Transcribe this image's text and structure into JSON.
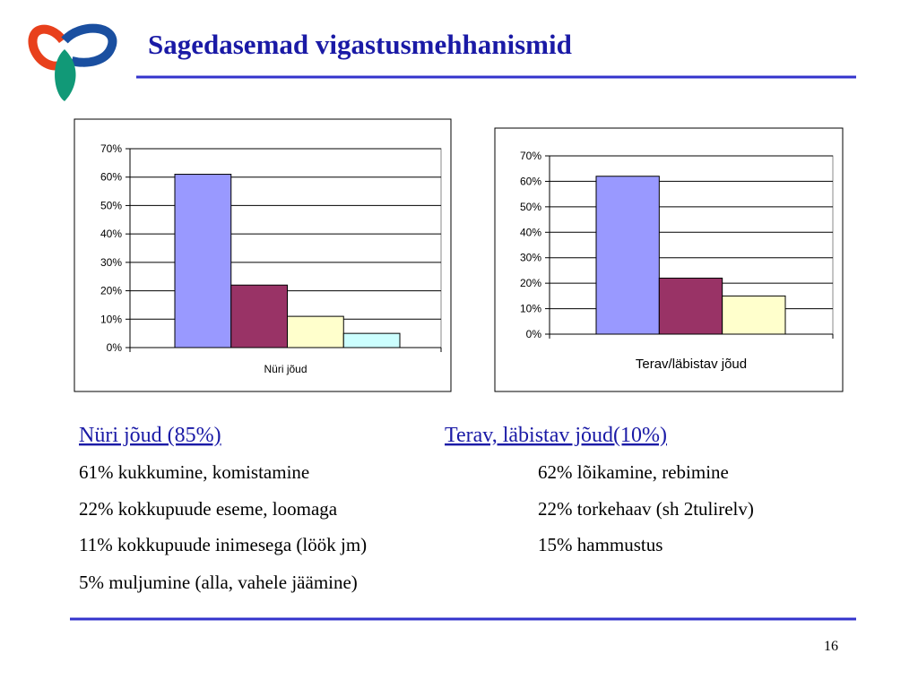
{
  "title": "Sagedasemad vigastusmehhanismid",
  "chart_data": [
    {
      "type": "bar",
      "categories": [
        "Nüri jõud"
      ],
      "series": [
        {
          "color": "#9999ff",
          "values": [
            61
          ]
        },
        {
          "color": "#993366",
          "values": [
            22
          ]
        },
        {
          "color": "#ffffcc",
          "values": [
            11
          ]
        },
        {
          "color": "#ccffff",
          "values": [
            5
          ]
        }
      ],
      "ylim": [
        0,
        70
      ],
      "yticks": [
        {
          "value": 0,
          "label": "0%"
        },
        {
          "value": 10,
          "label": "10%"
        },
        {
          "value": 20,
          "label": "20%"
        },
        {
          "value": 30,
          "label": "30%"
        },
        {
          "value": 40,
          "label": "40%"
        },
        {
          "value": 50,
          "label": "50%"
        },
        {
          "value": 60,
          "label": "60%"
        },
        {
          "value": 70,
          "label": "70%"
        }
      ],
      "grid": true
    },
    {
      "type": "bar",
      "categories": [
        "Terav/läbistav jõud"
      ],
      "series": [
        {
          "color": "#9999ff",
          "values": [
            62
          ]
        },
        {
          "color": "#993366",
          "values": [
            22
          ]
        },
        {
          "color": "#ffffcc",
          "values": [
            15
          ]
        }
      ],
      "ylim": [
        0,
        70
      ],
      "yticks": [
        {
          "value": 0,
          "label": "0%"
        },
        {
          "value": 10,
          "label": "10%"
        },
        {
          "value": 20,
          "label": "20%"
        },
        {
          "value": 30,
          "label": "30%"
        },
        {
          "value": 40,
          "label": "40%"
        },
        {
          "value": 50,
          "label": "50%"
        },
        {
          "value": 60,
          "label": "60%"
        },
        {
          "value": 70,
          "label": "70%"
        }
      ],
      "grid": true
    }
  ],
  "blunt": {
    "heading": "Nüri jõud (85%)",
    "lines": [
      "61% kukkumine, komistamine",
      "22% kokkupuude eseme, loomaga",
      "11% kokkupuude inimesega (löök jm)",
      "5% muljumine (alla, vahele jäämine)"
    ]
  },
  "sharp": {
    "heading": "Terav, läbistav jõud(10%)",
    "lines": [
      "62% lõikamine, rebimine",
      "22% torkehaav (sh 2tulirelv)",
      "15% hammustus"
    ]
  },
  "page_number": "16"
}
